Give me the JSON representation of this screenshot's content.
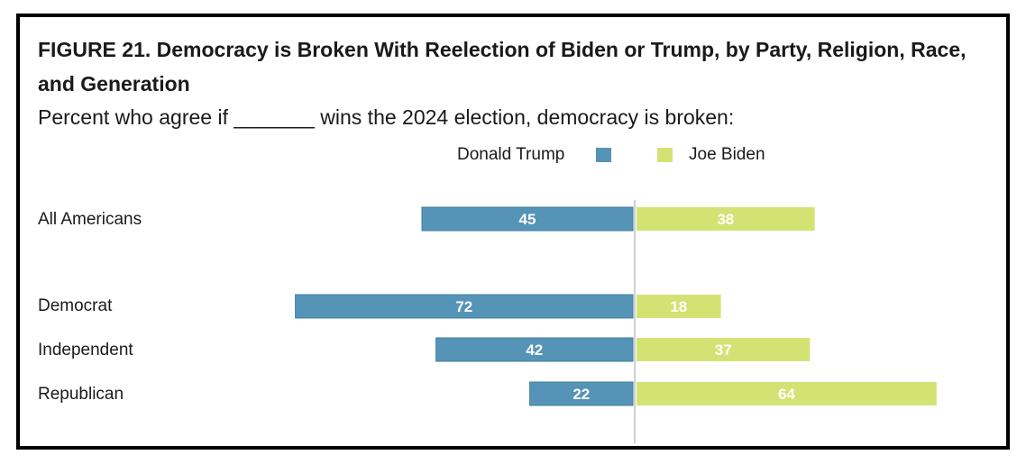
{
  "figure": {
    "title": "FIGURE 21.  Democracy is Broken With Reelection of Biden or Trump, by Party, Religion, Race, and Generation",
    "subtitle": "Percent who agree if _______ wins the 2024 election, democracy is broken:"
  },
  "colors": {
    "trump": "#5594b7",
    "biden": "#d3e373",
    "axis": "#d0d0d0"
  },
  "chart_data": {
    "type": "bar",
    "orientation": "diverging-horizontal",
    "categories": [
      "All Americans",
      "Democrat",
      "Independent",
      "Republican"
    ],
    "series": [
      {
        "name": "Donald Trump",
        "values": [
          45,
          72,
          42,
          22
        ]
      },
      {
        "name": "Joe Biden",
        "values": [
          38,
          18,
          37,
          64
        ]
      }
    ],
    "legend": "top-center",
    "grid": false
  }
}
